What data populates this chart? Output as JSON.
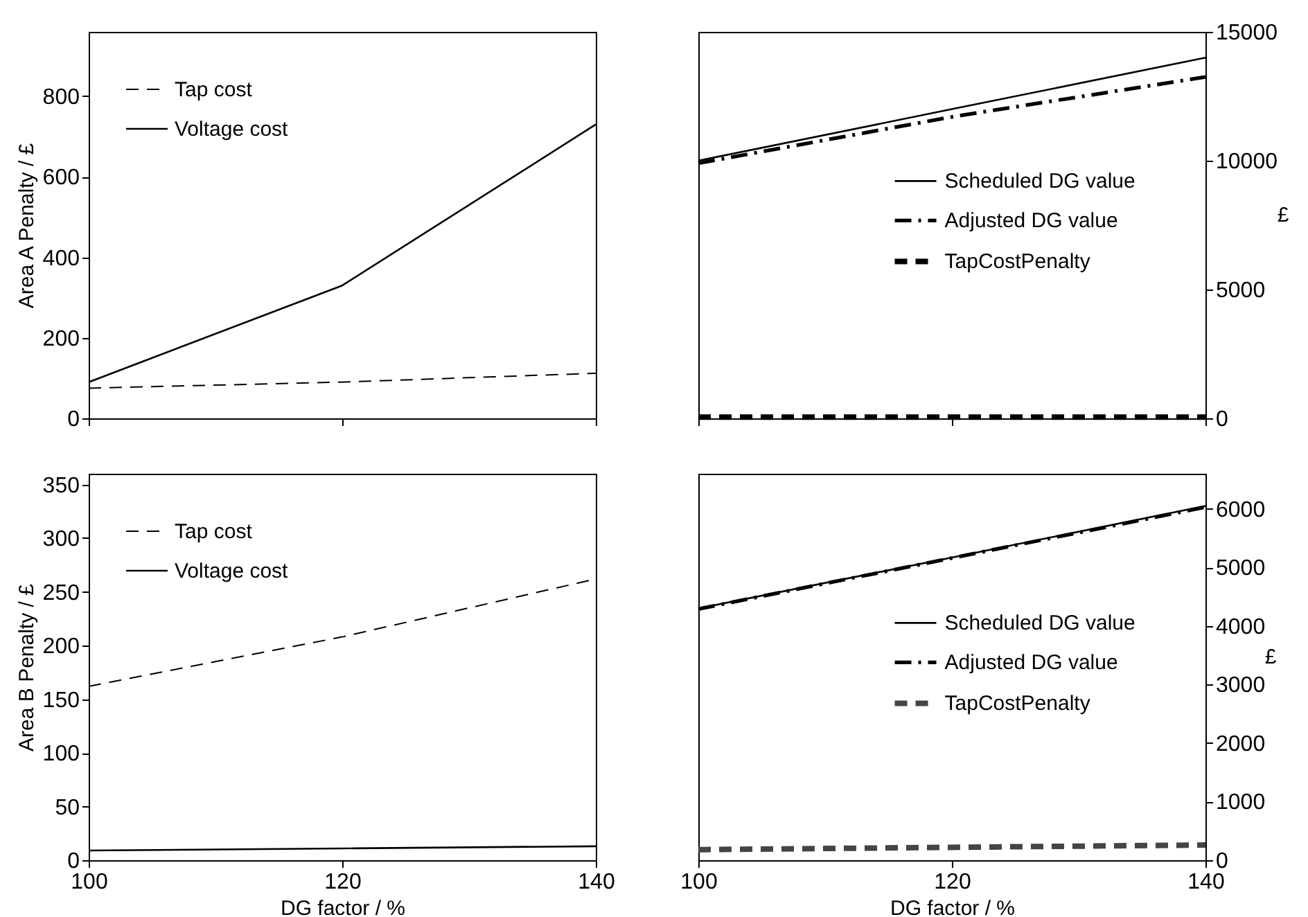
{
  "chart_data": [
    {
      "type": "line",
      "x": [
        100,
        120,
        140
      ],
      "xlim": [
        100,
        140
      ],
      "xticks": [
        100,
        120,
        140
      ],
      "ylabel": "Area A Penalty / £",
      "ylim": [
        0,
        960
      ],
      "yticks": [
        0,
        200,
        400,
        600,
        800
      ],
      "tick_labels": "y",
      "legend": "top left",
      "grid": false,
      "series": [
        {
          "name": "Tap cost",
          "color": "#000000",
          "line_style": "dashed",
          "values": [
            75,
            90,
            112
          ]
        },
        {
          "name": "Voltage cost",
          "color": "#000000",
          "line_style": "solid",
          "values": [
            90,
            330,
            730
          ]
        }
      ]
    },
    {
      "type": "line",
      "x": [
        100,
        120,
        140
      ],
      "xlim": [
        100,
        140
      ],
      "xticks": [
        100,
        120,
        140
      ],
      "y2label": "£",
      "y2lim": [
        0,
        15000
      ],
      "y2ticks": [
        0,
        5000,
        10000,
        15000
      ],
      "tick_labels": "y",
      "legend": "right",
      "grid": false,
      "series": [
        {
          "name": "Scheduled DG value",
          "color": "#000000",
          "line_style": "solid",
          "axis": "y2",
          "values": [
            10000,
            12000,
            14000
          ]
        },
        {
          "name": "Adjusted DG value",
          "color": "#000000",
          "line_style": "dashdot",
          "axis": "y2",
          "values": [
            9900,
            11700,
            13250
          ]
        },
        {
          "name": "TapCostPenalty",
          "color": "#000000",
          "line_style": "dashed",
          "axis": "y2",
          "values": [
            50,
            50,
            50
          ]
        }
      ]
    },
    {
      "type": "line",
      "x": [
        100,
        120,
        140
      ],
      "xlim": [
        100,
        140
      ],
      "xticks": [
        100,
        120,
        140
      ],
      "xlabel": "DG factor / %",
      "ylabel": "Area B Penalty / £",
      "ylim": [
        0,
        360
      ],
      "yticks": [
        0,
        50,
        100,
        150,
        200,
        250,
        300,
        350
      ],
      "legend": "top left",
      "grid": false,
      "series": [
        {
          "name": "Tap cost",
          "color": "#000000",
          "line_style": "dashed",
          "values": [
            162,
            208,
            262
          ]
        },
        {
          "name": "Voltage cost",
          "color": "#000000",
          "line_style": "solid",
          "values": [
            9,
            11,
            13
          ]
        }
      ]
    },
    {
      "type": "line",
      "x": [
        100,
        120,
        140
      ],
      "xlim": [
        100,
        140
      ],
      "xticks": [
        100,
        120,
        140
      ],
      "xlabel": "DG factor / %",
      "y2label": "£",
      "y2lim": [
        0,
        6600
      ],
      "y2ticks": [
        0,
        1000,
        2000,
        3000,
        4000,
        5000,
        6000
      ],
      "legend": "right",
      "grid": false,
      "series": [
        {
          "name": "Scheduled DG value",
          "color": "#000000",
          "line_style": "solid",
          "axis": "y2",
          "values": [
            4300,
            5170,
            6050
          ]
        },
        {
          "name": "Adjusted DG value",
          "color": "#000000",
          "line_style": "dashdot",
          "axis": "y2",
          "values": [
            4290,
            5160,
            6030
          ]
        },
        {
          "name": "TapCostPenalty",
          "color": "#444444",
          "line_style": "dashed",
          "axis": "y2",
          "values": [
            180,
            220,
            260
          ]
        }
      ]
    }
  ]
}
